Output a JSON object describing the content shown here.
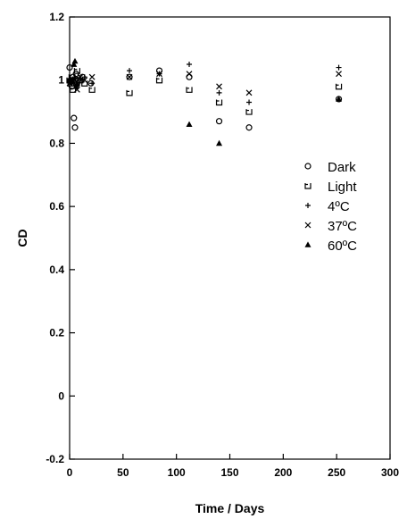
{
  "chart_data": {
    "type": "scatter",
    "title": "",
    "xlabel": "Time / Days",
    "ylabel": "CD",
    "xlim": [
      0,
      300
    ],
    "ylim": [
      -0.2,
      1.2
    ],
    "xticks": [
      "0",
      "50",
      "100",
      "150",
      "200",
      "250",
      "300"
    ],
    "yticks": [
      "-0.2",
      "0",
      "0.2",
      "0.4",
      "0.6",
      "0.8",
      "1",
      "1.2"
    ],
    "grid": false,
    "legend_position": "right-middle",
    "series": [
      {
        "name": "Dark",
        "marker": "circle",
        "x": [
          0,
          1,
          2,
          3,
          4,
          5,
          6,
          7,
          8,
          12,
          20,
          56,
          84,
          112,
          140,
          168,
          252
        ],
        "y": [
          1.04,
          1.0,
          0.98,
          1.01,
          0.88,
          0.85,
          1.02,
          0.99,
          1.0,
          1.01,
          0.99,
          1.01,
          1.03,
          1.01,
          0.87,
          0.85,
          0.94
        ]
      },
      {
        "name": "Light",
        "marker": "square-open-top",
        "x": [
          0,
          1,
          2,
          3,
          5,
          7,
          10,
          14,
          21,
          56,
          84,
          112,
          140,
          168,
          252
        ],
        "y": [
          1.0,
          0.99,
          1.01,
          0.97,
          1.0,
          1.03,
          1.0,
          0.99,
          0.97,
          0.96,
          1.0,
          0.97,
          0.93,
          0.9,
          0.98
        ]
      },
      {
        "name": "4ºC",
        "marker": "plus",
        "x": [
          0,
          2,
          5,
          7,
          10,
          14,
          21,
          56,
          84,
          112,
          140,
          168,
          252
        ],
        "y": [
          1.0,
          0.99,
          1.01,
          0.98,
          1.0,
          1.01,
          0.99,
          1.03,
          1.02,
          1.05,
          0.96,
          0.93,
          1.04
        ]
      },
      {
        "name": "37ºC",
        "marker": "cross",
        "x": [
          0,
          2,
          5,
          7,
          10,
          14,
          21,
          56,
          84,
          112,
          140,
          168,
          252
        ],
        "y": [
          0.99,
          1.0,
          1.0,
          0.97,
          1.01,
          1.0,
          1.01,
          1.01,
          1.02,
          1.02,
          0.98,
          0.96,
          1.02
        ]
      },
      {
        "name": "60ºC",
        "marker": "triangle",
        "x": [
          0,
          2,
          4,
          5,
          6,
          7,
          112,
          140,
          252
        ],
        "y": [
          1.0,
          1.0,
          1.05,
          1.06,
          0.98,
          0.99,
          0.86,
          0.8,
          0.94
        ]
      }
    ]
  }
}
